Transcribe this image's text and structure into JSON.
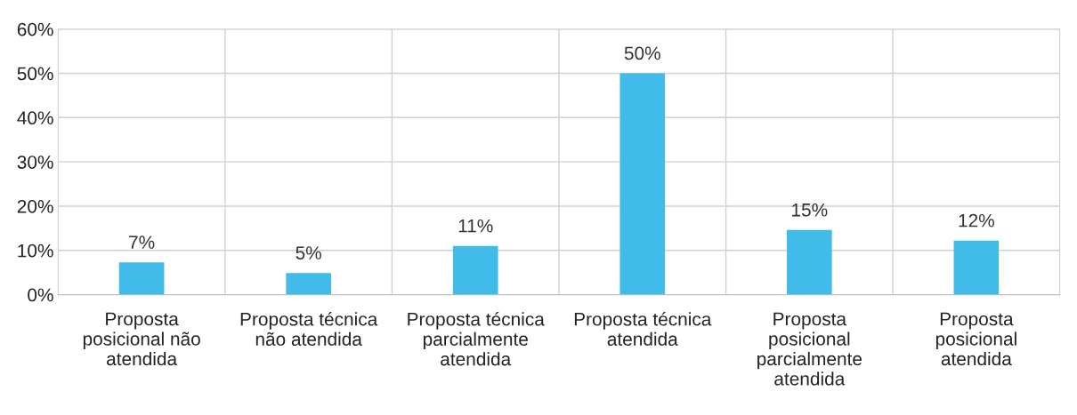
{
  "chart_data": {
    "type": "bar",
    "categories": [
      "Proposta posicional não atendida",
      "Proposta técnica não atendida",
      "Proposta técnica parcialmente atendida",
      "Proposta técnica atendida",
      "Proposta posicional parcialmente atendida",
      "Proposta posicional atendida"
    ],
    "values": [
      7.3,
      4.9,
      11,
      50,
      14.6,
      12.2
    ],
    "value_labels": [
      "7%",
      "5%",
      "11%",
      "50%",
      "15%",
      "12%"
    ],
    "color": "#41bbe9",
    "ylim": [
      0,
      60
    ],
    "yticks": [
      {
        "value": 0,
        "label": "0%"
      },
      {
        "value": 10,
        "label": "10%"
      },
      {
        "value": 20,
        "label": "20%"
      },
      {
        "value": 30,
        "label": "30%"
      },
      {
        "value": 40,
        "label": "40%"
      },
      {
        "value": 50,
        "label": "50%"
      },
      {
        "value": 60,
        "label": "60%"
      }
    ],
    "grid": true
  }
}
